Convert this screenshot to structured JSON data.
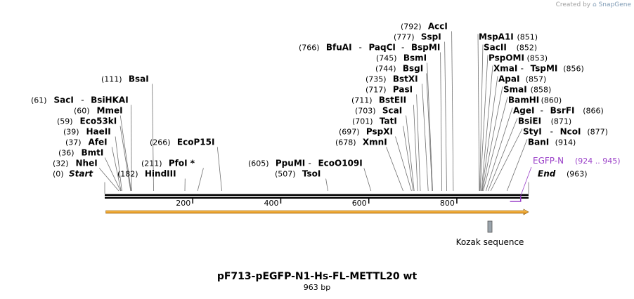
{
  "watermark": {
    "prefix": "Created by",
    "brand": "SnapGene"
  },
  "map": {
    "name": "pF713-pEGFP-N1-Hs-FL-METTL20 wt",
    "length_label": "963 bp",
    "length": 963
  },
  "ruler": {
    "ticks": [
      {
        "pos": 200,
        "label": "200"
      },
      {
        "pos": 400,
        "label": "400"
      },
      {
        "pos": 600,
        "label": "600"
      },
      {
        "pos": 800,
        "label": "800"
      }
    ]
  },
  "markers": [
    {
      "id": "start",
      "label": "Start",
      "pos_label": "(0)",
      "pos": 0
    },
    {
      "id": "end",
      "label": "End",
      "pos_label": "(963)",
      "pos": 963
    }
  ],
  "sites": [
    {
      "id": "nhei",
      "name": "NheI",
      "pos_label": "(32)",
      "pos": 32
    },
    {
      "id": "bmti",
      "name": "BmtI",
      "pos_label": "(36)",
      "pos": 36
    },
    {
      "id": "afei",
      "name": "AfeI",
      "pos_label": "(37)",
      "pos": 37
    },
    {
      "id": "haeii",
      "name": "HaeII",
      "pos_label": "(39)",
      "pos": 39
    },
    {
      "id": "eco53ki",
      "name": "Eco53kI",
      "pos_label": "(59)",
      "pos": 59
    },
    {
      "id": "mmei",
      "name": "MmeI",
      "pos_label": "(60)",
      "pos": 60
    },
    {
      "id": "saci",
      "name": "SacI",
      "second_name": "BsiHKAI",
      "pos_label": "(61)",
      "pos": 61
    },
    {
      "id": "bsai",
      "name": "BsaI",
      "pos_label": "(111)",
      "pos": 111
    },
    {
      "id": "hindiii",
      "name": "HindIII",
      "pos_label": "(182)",
      "pos": 182
    },
    {
      "id": "pfoi",
      "name": "PfoI *",
      "pos_label": "(211)",
      "pos": 211
    },
    {
      "id": "ecop15i",
      "name": "EcoP15I",
      "pos_label": "(266)",
      "pos": 266
    },
    {
      "id": "tsoi",
      "name": "TsoI",
      "pos_label": "(507)",
      "pos": 507
    },
    {
      "id": "ppumi",
      "name": "PpuMI",
      "second_name": "EcoO109I",
      "pos_label": "(605)",
      "pos": 605
    },
    {
      "id": "xmni",
      "name": "XmnI",
      "pos_label": "(678)",
      "pos": 678
    },
    {
      "id": "pspxi",
      "name": "PspXI",
      "pos_label": "(697)",
      "pos": 697
    },
    {
      "id": "tati",
      "name": "TatI",
      "pos_label": "(701)",
      "pos": 701
    },
    {
      "id": "scai",
      "name": "ScaI",
      "pos_label": "(703)",
      "pos": 703
    },
    {
      "id": "bsteii",
      "name": "BstEII",
      "pos_label": "(711)",
      "pos": 711
    },
    {
      "id": "pasi",
      "name": "PasI",
      "pos_label": "(717)",
      "pos": 717
    },
    {
      "id": "bstxi",
      "name": "BstXI",
      "pos_label": "(735)",
      "pos": 735
    },
    {
      "id": "bsgi",
      "name": "BsgI",
      "pos_label": "(744)",
      "pos": 744
    },
    {
      "id": "bsmi",
      "name": "BsmI",
      "pos_label": "(745)",
      "pos": 745
    },
    {
      "id": "bfuai",
      "name": "BfuAI",
      "second_name": "PaqCI",
      "third_name": "BspMI",
      "pos_label": "(766)",
      "pos": 766
    },
    {
      "id": "sspi",
      "name": "SspI",
      "pos_label": "(777)",
      "pos": 777
    },
    {
      "id": "acci",
      "name": "AccI",
      "pos_label": "(792)",
      "pos": 792
    },
    {
      "id": "mspa1i",
      "name": "MspA1I",
      "pos_label": "(851)",
      "pos": 851
    },
    {
      "id": "sacii",
      "name": "SacII",
      "pos_label": "(852)",
      "pos": 852
    },
    {
      "id": "pspomi",
      "name": "PspOMI",
      "pos_label": "(853)",
      "pos": 853
    },
    {
      "id": "xmai",
      "name": "XmaI",
      "second_name": "TspMI",
      "pos_label": "(856)",
      "pos": 856
    },
    {
      "id": "apai",
      "name": "ApaI",
      "pos_label": "(857)",
      "pos": 857
    },
    {
      "id": "smai",
      "name": "SmaI",
      "pos_label": "(858)",
      "pos": 858
    },
    {
      "id": "bamhi",
      "name": "BamHI",
      "pos_label": "(860)",
      "pos": 860
    },
    {
      "id": "agei",
      "name": "AgeI",
      "second_name": "BsrFI",
      "pos_label": "(866)",
      "pos": 866
    },
    {
      "id": "bsiei",
      "name": "BsiEI",
      "pos_label": "(871)",
      "pos": 871
    },
    {
      "id": "styi",
      "name": "StyI",
      "second_name": "NcoI",
      "pos_label": "(877)",
      "pos": 877
    },
    {
      "id": "bani",
      "name": "BanI",
      "pos_label": "(914)",
      "pos": 914
    }
  ],
  "features": [
    {
      "id": "egfp-n",
      "name": "EGFP-N",
      "range_label": "(924 .. 945)",
      "start": 924,
      "end": 945,
      "color": "#9a40c8"
    },
    {
      "id": "kozak",
      "name": "Kozak sequence",
      "start": 871,
      "end": 877,
      "color": "#9aa4ac"
    }
  ],
  "orf": {
    "start": 1,
    "end": 963,
    "color": "#f0a830",
    "edge_color": "#8a5a10"
  }
}
